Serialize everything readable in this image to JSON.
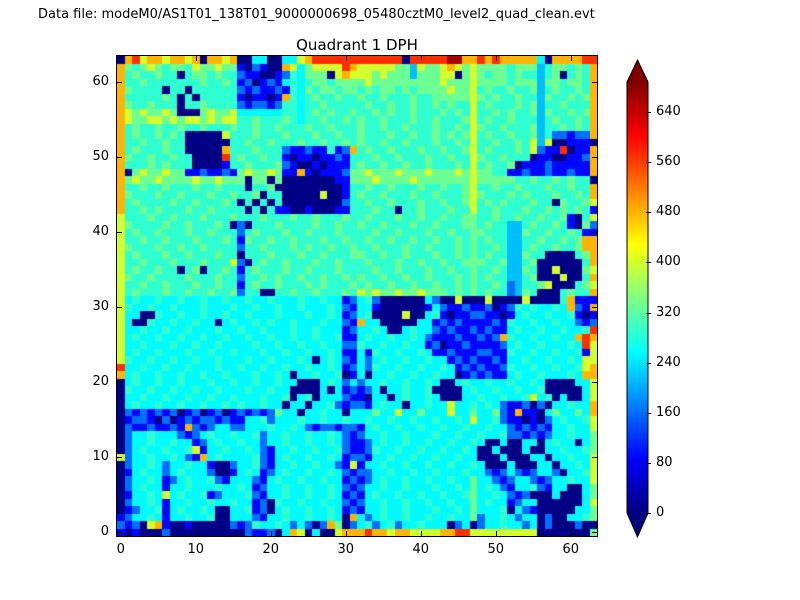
{
  "figure": {
    "header": "Data file: modeM0/AS1T01_138T01_9000000698_05480cztM0_level2_quad_clean.evt",
    "title": "Quadrant 1 DPH",
    "colors": {
      "background": "#ffffff",
      "axis": "#000000"
    }
  },
  "chart_data": {
    "type": "heatmap",
    "title": "Quadrant 1 DPH",
    "xlabel": "",
    "ylabel": "",
    "x_range": [
      -0.5,
      63.5
    ],
    "y_range": [
      -0.5,
      63.5
    ],
    "x_ticks": [
      0,
      10,
      20,
      30,
      40,
      50,
      60
    ],
    "y_ticks": [
      0,
      10,
      20,
      30,
      40,
      50,
      60
    ],
    "grid_size": 64,
    "colormap": "jet",
    "colorbar": {
      "ticks": [
        0,
        80,
        160,
        240,
        320,
        400,
        480,
        560,
        640
      ],
      "vmin": 0,
      "vmax": 688,
      "extend": "both",
      "gradient_stops": [
        "#000080",
        "#0000ff",
        "#00ffff",
        "#ffff00",
        "#ff0000",
        "#800000"
      ]
    },
    "value_encoding": {
      ".": 5,
      "1": 90,
      "2": 160,
      "3": 215,
      "4": 255,
      "5": 290,
      "6": 330,
      "7": 400,
      "8": 480,
      "9": 570,
      "a": 660
    },
    "grid_rows_top_to_bottom": [
      ".8978878878.8878..44..4478999999999999.99999aa88989888884.888899",
      "86567656657667661.21..874677779877777663766787676666566635665658",
      "85655655.5665655211..1254666.7877767666366677.6765665655356.5658",
      "855655555556556512.121454566566667666666666766676666566636656658",
      "865555.55.5555552121121546566566565665656666766756556556356556 58",
      "85555565.5.555551.11.1854565565565565556556666676565565536556568",
      "86556555.55655552122125545565555565565565565655756555656355655 58",
      "87676676...676674444445545656556556565565556565755656556365565 68",
      "87667767677676775565556545565565655655565565556756556555356556 58",
      "85655655655655565565565556556555655655655565565765565556355656 58",
      "856556565.....7555655565556556556555655655656567565565563522122 8",
      "855655655......556556555655655656556556555655657556556573 7..111.",
      "856555655.....85556555211211512856556555655655675655565721 19.118",
      "8655655655....956556551.11.112155565565556556557655655 5.11..1128",
      "8555656555....1556555621..1.1115655655655655565756556.1112111118",
      "8.676676611211216766761181.111266766676667666767665511211211211 8",
      "86766766667667666.66.6.......1166676666766666667666665565565655.",
      "85565565556556555.556.........155655655565565567556556555655655 8",
      "8655565565556556556.55.....7..156556555655655567655565655565565 8",
      "8565555655655565.5.5.5........2556556555655655675656555655.65567",
      "85565655565565555.5.511..1...11555655.55655565575565556556565651",
      "755565565556555655565556556555655655565565565566556556556556 1.57",
      "765555655655565.2.555655556556556556555655655566565533565565 1.62",
      "75655655565565552565556556555655556556555655655665553365565565 11",
      "755655655565556516556556555655655655655655655656565533556556568 8",
      "765556556556555525565556565565565565556556555656556533565565568 8",
      "7565556556555655.5556555655655566556556555655656565533655....568",
      "75565556555655572.5655655565565556555655655655666556335 6......58",
      "75655655.56.556515655565565556555565565556556556556533 65..7...67",
      "765565555655565525565655655655656556556556555656565533 56...7..58",
      "755655655565565515655655565655565655655655655656556523556 7...567",
      "7565556556556556255..556556555657676676676665656565523 65...56558",
      "74544544544544544544544454454412452......42..7...7....7....58111",
      "75445445444544454454454454445421441......142112112.125454454821 8",
      "744..544544544544544454445445412 45....7..451.112211.1454454451.1",
      "74..544544544.454454544544454421844.....441212111121544544544212",
      "74454454454445445445444544544412 4454..45442121121211454454454459",
      "745445445445445445445445445445114544544542111211212854454454489 8",
      "7445444544544544445445445445442254454454412.11211112454454445497",
      "745445444544544544454454454454114154454454112111221154454454451 7",
      "75445445445445444544544454.454214245445445441212112144544544547 7",
      "944544544544454454454454454454124254454454454121211254454454457 8",
      "84544544544544544454454.445445.14.44544544544.12121145445444548 8",
      ".45445445444544544544544...45424244544544 54..454454454454....447",
      ".5445445445445444544544....4.412124.445445....45445445445.....47",
      ".4454454454454454445445.45.444211.44.454454...445445445745. 4..47",
      ".454454454454454544544.44.445212214544.4454474454542112. 2.445448",
      ".2121212.12.12.121212644.44544.4446447446444744644621811.4644648",
      ".1221.2.121221211445244454454454454454454454454744521 1.1.2454457",
      ".21121121821244224445445421221221454454454454454454421212144544 7",
      ".24454442124544544524454454454212445445444544544544522121244544 6",
      ".2445445441245445442445445445421124544544544544 54..4..44.4544.46",
      ".24544544571445445421445445445211254454454454454.. 4...4..4454456",
      "724454454218454444521454454454122144544544544544... 4...44.445447",
      ".244542445441..244521445445442171445445445445445 4...4...44.44547",
      ".145442454442..1454124544544542122445445445444544212421244 2.4457",
      ".244541245445214442145445445441212454454454454464421244212445447",
      ".2454414454445445412445445445421244544544454454645421445214 4..46",
      ".14454745445124445214454454454121454454454454456445421 2...4...46",
      ".2445414454454454412.544544544212445445445445446454412 44......47",
      ".124451454454..44512.4544544541214454454445445464445.42 1.....446",
      "1244541445445..444214454454454.8424544544544544624454244. 2..4456",
      "212.781..1.....21254454242.286.2452452445444.24.24454424. 2...2..",
      "1.1...2..........2112.487.4..7888988788777788997777777 77.......6"
    ]
  }
}
